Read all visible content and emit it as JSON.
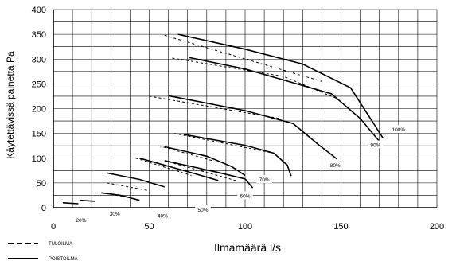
{
  "chart_data": {
    "type": "line",
    "xlabel": "Ilmamäärä l/s",
    "ylabel": "Käytettävissä painetta Pa",
    "xlim": [
      0,
      200
    ],
    "ylim": [
      0,
      400
    ],
    "xticks": [
      0,
      50,
      100,
      150,
      200
    ],
    "yticks": [
      0,
      50,
      100,
      150,
      200,
      250,
      300,
      350,
      400
    ],
    "grid": true,
    "legend": [
      {
        "label": "TULOILMA",
        "style": "dashed"
      },
      {
        "label": "POISTOILMA",
        "style": "solid"
      }
    ],
    "series": [
      {
        "name": "20%",
        "tuloilma": [
          [
            5,
            10
          ],
          [
            13,
            8
          ]
        ],
        "poistoilma": [
          [
            5,
            10
          ],
          [
            13,
            8
          ]
        ]
      },
      {
        "name": "20%",
        "tuloilma": [
          [
            14,
            15
          ],
          [
            22,
            13
          ]
        ],
        "poistoilma": [
          [
            14,
            15
          ],
          [
            22,
            13
          ]
        ]
      },
      {
        "name": "30%",
        "tuloilma": [
          [
            25,
            30
          ],
          [
            38,
            22
          ]
        ],
        "poistoilma": [
          [
            25,
            30
          ],
          [
            35,
            25
          ],
          [
            45,
            15
          ]
        ]
      },
      {
        "name": "40%",
        "tuloilma": [
          [
            28,
            50
          ],
          [
            49,
            35
          ]
        ],
        "poistoilma": [
          [
            28,
            70
          ],
          [
            45,
            57
          ],
          [
            58,
            42
          ]
        ]
      },
      {
        "name": "50%",
        "tuloilma": [
          [
            43,
            100
          ],
          [
            72,
            65
          ]
        ],
        "poistoilma": [
          [
            45,
            100
          ],
          [
            70,
            73
          ],
          [
            86,
            55
          ]
        ]
      },
      {
        "name": "60%",
        "tuloilma": [
          [
            55,
            125
          ],
          [
            83,
            95
          ]
        ],
        "poistoilma": [
          [
            58,
            123
          ],
          [
            80,
            104
          ],
          [
            93,
            83
          ],
          [
            100,
            65
          ]
        ]
      },
      {
        "name": "60%",
        "tuloilma": [
          [
            58,
            95
          ],
          [
            95,
            55
          ]
        ],
        "poistoilma": [
          [
            58,
            95
          ],
          [
            85,
            72
          ],
          [
            100,
            58
          ],
          [
            104,
            40
          ]
        ]
      },
      {
        "name": "70%",
        "tuloilma": [
          [
            63,
            150
          ],
          [
            115,
            110
          ]
        ],
        "poistoilma": [
          [
            68,
            148
          ],
          [
            100,
            126
          ],
          [
            115,
            110
          ],
          [
            122,
            86
          ],
          [
            124,
            64
          ]
        ]
      },
      {
        "name": "80%",
        "tuloilma": [
          [
            50,
            225
          ],
          [
            118,
            180
          ]
        ],
        "poistoilma": [
          [
            60,
            226
          ],
          [
            100,
            196
          ],
          [
            125,
            170
          ],
          [
            138,
            128
          ],
          [
            148,
            98
          ]
        ]
      },
      {
        "name": "90%",
        "tuloilma": [
          [
            58,
            348
          ],
          [
            140,
            255
          ]
        ],
        "poistoilma": [
          [
            65,
            350
          ],
          [
            100,
            320
          ],
          [
            130,
            290
          ],
          [
            155,
            242
          ],
          [
            172,
            140
          ]
        ]
      },
      {
        "name": "100%",
        "tuloilma": [
          [
            62,
            302
          ],
          [
            120,
            265
          ],
          [
            148,
            220
          ]
        ],
        "poistoilma": [
          [
            71,
            303
          ],
          [
            100,
            280
          ],
          [
            145,
            230
          ],
          [
            160,
            180
          ],
          [
            170,
            134
          ]
        ]
      }
    ],
    "curve_labels": [
      "20%",
      "30%",
      "40%",
      "50%",
      "60%",
      "70%",
      "80%",
      "90%",
      "100%"
    ]
  }
}
